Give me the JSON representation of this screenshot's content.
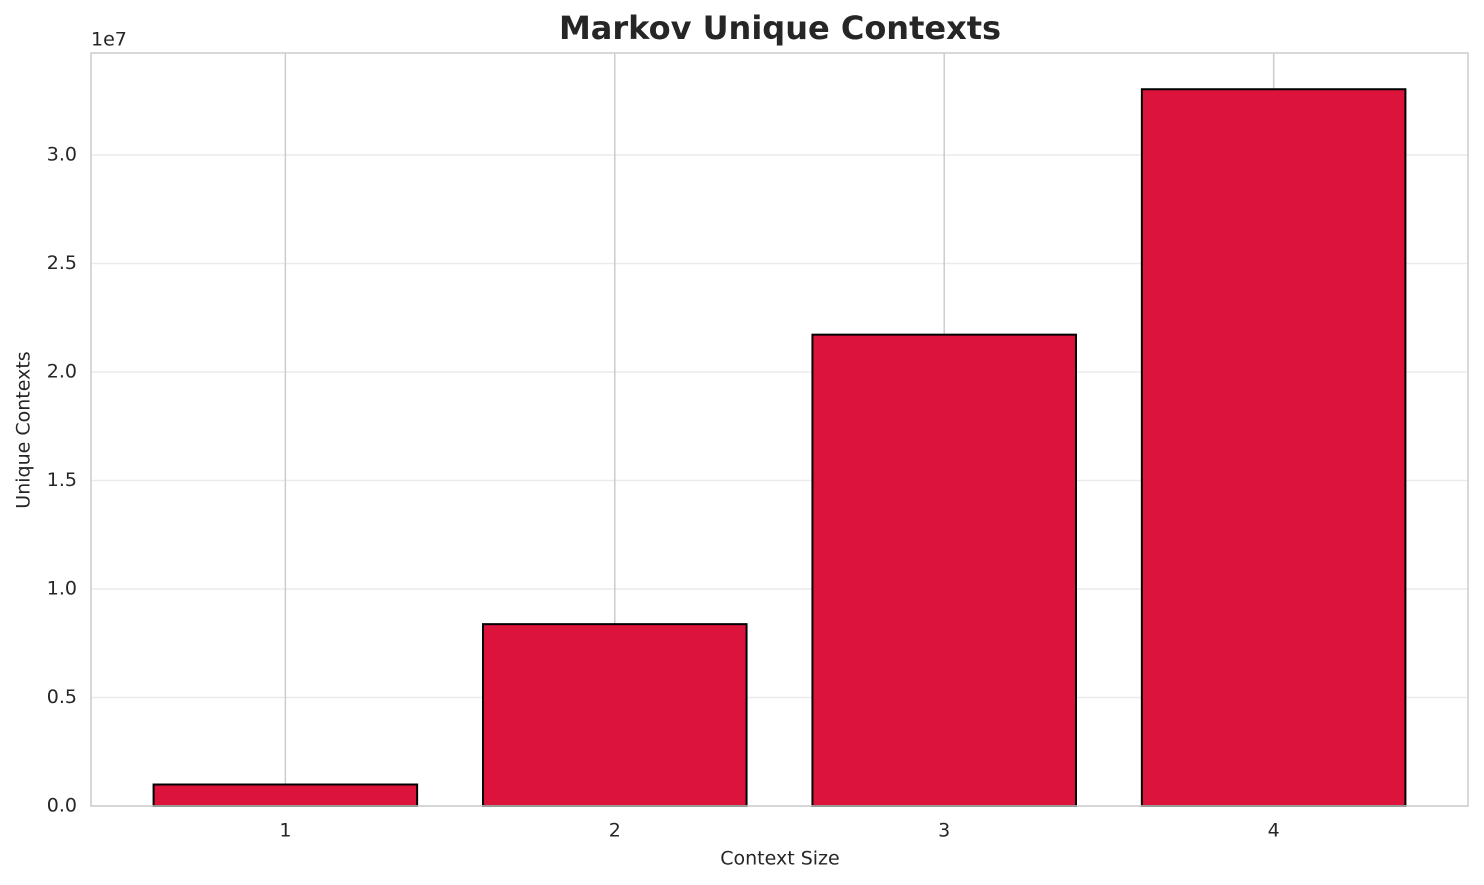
{
  "chart_data": {
    "type": "bar",
    "title": "Markov Unique Contexts",
    "x_label": "Context Size",
    "y_label": "Unique Contexts",
    "y_offset_label": "1e7",
    "categories": [
      "1",
      "2",
      "3",
      "4"
    ],
    "values": [
      0.099,
      0.838,
      2.172,
      3.303
    ],
    "color": "#dc143c",
    "edgecolor": "#000000",
    "ylim": [
      0,
      3.47
    ],
    "yticks": [
      {
        "value": 0,
        "label": "0.0"
      },
      0.5,
      {
        "value": 1,
        "label": "1.0"
      },
      1.5,
      {
        "value": 2,
        "label": "2.0"
      },
      2.5,
      {
        "value": 3,
        "label": "3.0"
      }
    ],
    "grid": true
  }
}
